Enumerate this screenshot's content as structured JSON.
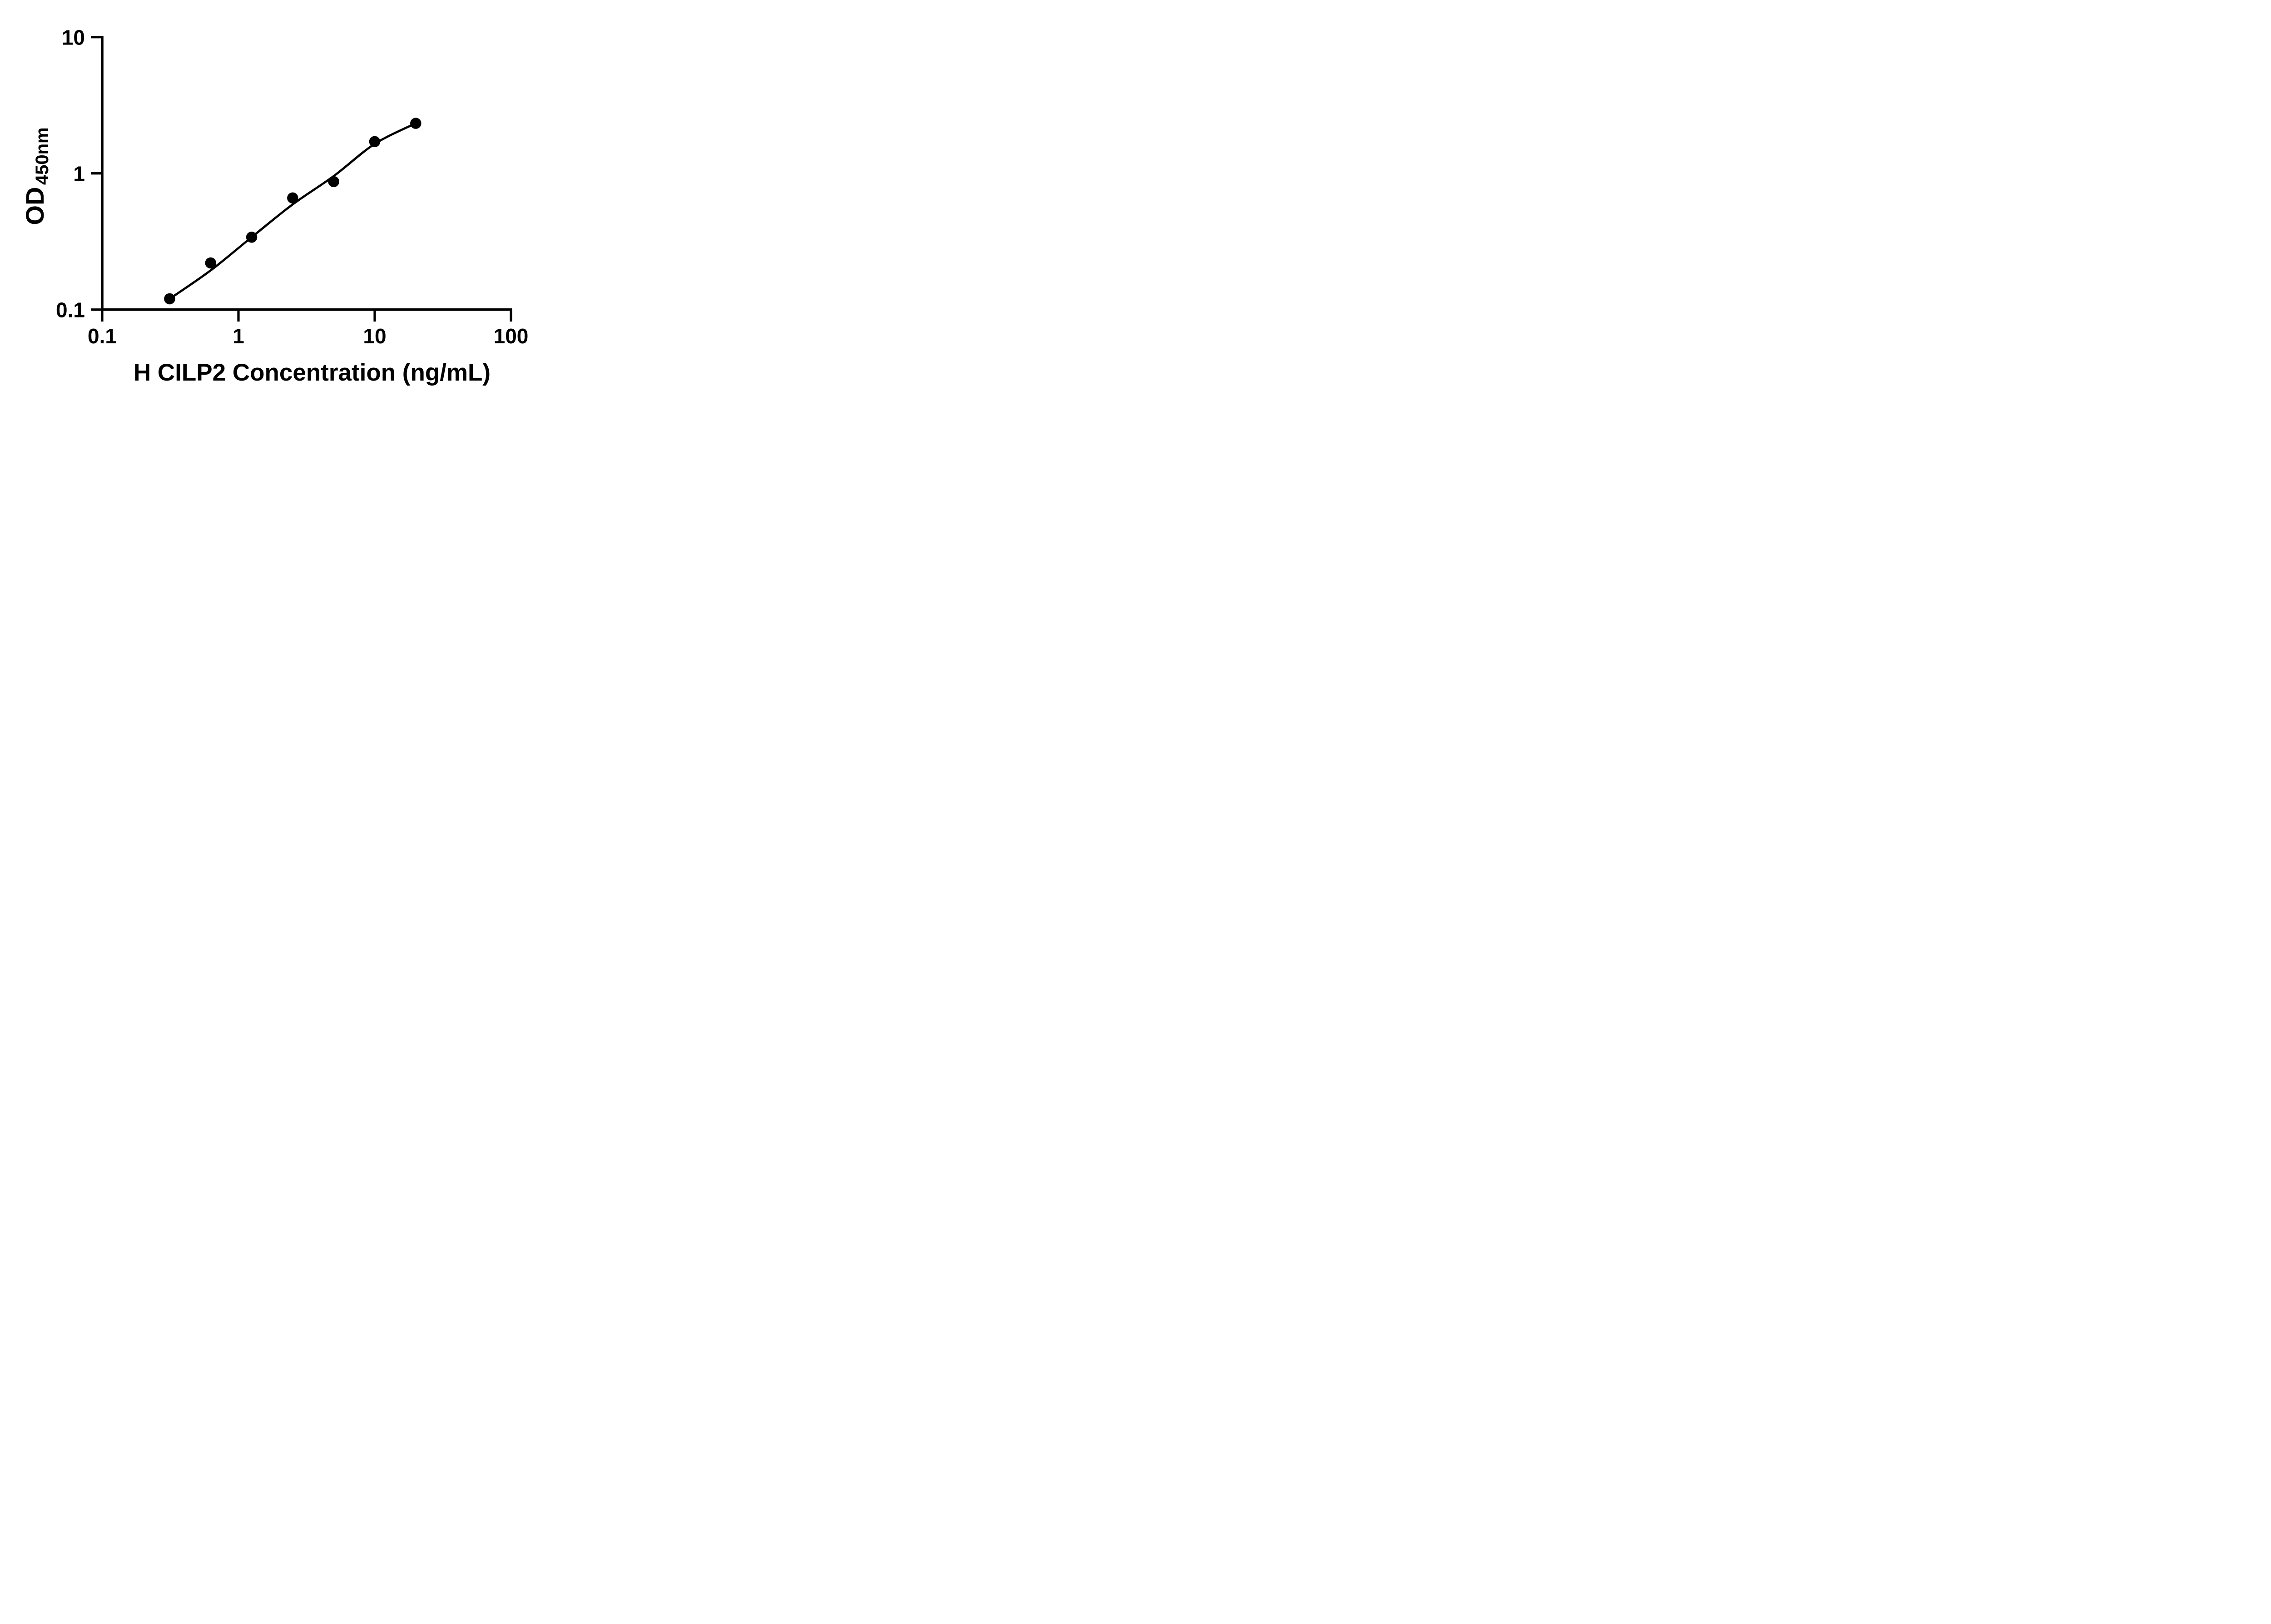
{
  "chart_data": {
    "type": "scatter",
    "title": "",
    "xlabel": "H CILP2 Concentration (ng/mL)",
    "ylabel": "OD450nm",
    "ylabel_main": "OD",
    "ylabel_sub": "450nm",
    "x_scale": "log",
    "y_scale": "log",
    "xlim": [
      0.1,
      100
    ],
    "ylim": [
      0.1,
      10
    ],
    "grid": false,
    "legend_position": "none",
    "background_color": "#ffffff",
    "axis_color": "#000000",
    "marker_color": "#000000",
    "line_color": "#000000",
    "x_ticks": [
      0.1,
      1,
      10,
      100
    ],
    "x_tick_labels": [
      "0.1",
      "1",
      "10",
      "100"
    ],
    "y_ticks": [
      10,
      1,
      0.1
    ],
    "y_tick_labels": [
      "10",
      "1",
      "0.1"
    ],
    "series": [
      {
        "name": "standard-curve-points",
        "marker": "circle",
        "x": [
          0.3125,
          0.625,
          1.25,
          2.5,
          5,
          10,
          20
        ],
        "y": [
          0.12,
          0.22,
          0.34,
          0.66,
          0.87,
          1.71,
          2.33
        ]
      }
    ],
    "fit_curve": {
      "name": "4pl-fit-line",
      "x": [
        0.3125,
        0.625,
        1.25,
        2.5,
        5,
        10,
        20
      ],
      "y": [
        0.12,
        0.194,
        0.34,
        0.592,
        0.955,
        1.645,
        2.33
      ]
    }
  }
}
